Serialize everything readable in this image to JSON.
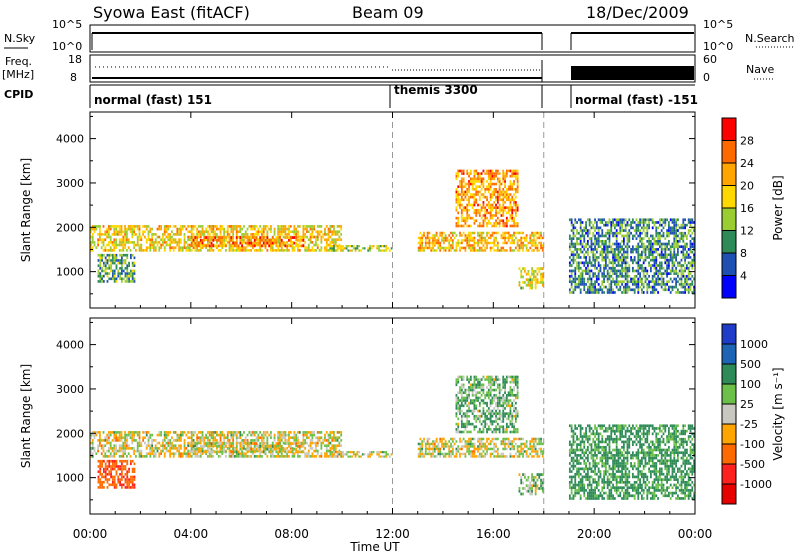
{
  "header": {
    "station": "Syowa East (fitACF)",
    "beam": "Beam 09",
    "date": "18/Dec/2009"
  },
  "strip_labels": {
    "nsky": "N.Sky",
    "nsky_ticks": [
      "10^5",
      "10^0"
    ],
    "nsearch": "N.Search",
    "nsearch_ticks": [
      "10^5",
      "10^0"
    ],
    "freq_line1": "Freq.",
    "freq_line2": "[MHz]",
    "freq_ticks": [
      "18",
      "8"
    ],
    "nave": "Nave",
    "nave_ticks": [
      "60",
      "0"
    ],
    "cpid": "CPID"
  },
  "cpid_segments": [
    {
      "label": "normal (fast) 151",
      "start_h": 0
    },
    {
      "label": "themis 3300",
      "start_h": 12
    },
    {
      "label": "normal (fast) -151",
      "start_h": 19
    }
  ],
  "panels": {
    "power": {
      "ylabel": "Slant Range [km]",
      "cbar_label": "Power [dB]",
      "cbar_ticks": [
        "28",
        "24",
        "20",
        "16",
        "12",
        "8",
        "4"
      ],
      "cbar_colors": [
        "#ff0000",
        "#ff6a00",
        "#ffa500",
        "#ffd800",
        "#9acd32",
        "#2e8b57",
        "#1e50b4",
        "#0000ff"
      ]
    },
    "velocity": {
      "ylabel": "Slant Range [km]",
      "cbar_label": "Velocity [m s⁻¹]",
      "cbar_ticks": [
        "1000",
        "500",
        "100",
        "25",
        "-25",
        "-100",
        "-500",
        "-1000"
      ],
      "cbar_colors": [
        "#1e3cc8",
        "#1e64b4",
        "#2e8b57",
        "#6cc04a",
        "#c8c8c0",
        "#ffa500",
        "#ff6a00",
        "#ff2020",
        "#e60000"
      ]
    }
  },
  "xaxis": {
    "label": "Time UT",
    "ticks": [
      "00:00",
      "04:00",
      "08:00",
      "12:00",
      "16:00",
      "20:00",
      "00:00"
    ]
  },
  "chart_data": {
    "type": "heatmap",
    "title": "Syowa East (fitACF) Beam 09 18/Dec/2009",
    "xlabel": "Time UT",
    "ylabel": "Slant Range [km]",
    "xlim_hours": [
      0,
      24
    ],
    "ylim_km": [
      180,
      4600
    ],
    "y_ticks_km": [
      1000,
      2000,
      3000,
      4000
    ],
    "data_gap_hours": [
      18,
      19
    ],
    "cpid_change_hours": [
      12,
      18
    ],
    "power_scale_db": [
      0,
      30
    ],
    "velocity_scale_ms": [
      -1000,
      1000
    ],
    "echo_regions": [
      {
        "t0": 0.0,
        "t1": 10.0,
        "r0": 1450,
        "r1": 2050,
        "power_db": 18,
        "velocity": 0
      },
      {
        "t0": 4.0,
        "t1": 8.5,
        "r0": 1550,
        "r1": 1800,
        "power_db": 24,
        "velocity": 0
      },
      {
        "t0": 0.3,
        "t1": 1.8,
        "r0": 750,
        "r1": 1400,
        "power_db": 10,
        "velocity": -450
      },
      {
        "t0": 9.5,
        "t1": 12.0,
        "r0": 1450,
        "r1": 1600,
        "power_db": 14,
        "velocity": 0
      },
      {
        "t0": 13.0,
        "t1": 18.0,
        "r0": 1450,
        "r1": 1900,
        "power_db": 20,
        "velocity": 0
      },
      {
        "t0": 14.5,
        "t1": 17.0,
        "r0": 2000,
        "r1": 3300,
        "power_db": 22,
        "velocity": 80
      },
      {
        "t0": 17.0,
        "t1": 18.0,
        "r0": 600,
        "r1": 1100,
        "power_db": 16,
        "velocity": 60
      },
      {
        "t0": 19.0,
        "t1": 24.0,
        "r0": 500,
        "r1": 2200,
        "power_db": 8,
        "velocity": 150
      }
    ]
  }
}
